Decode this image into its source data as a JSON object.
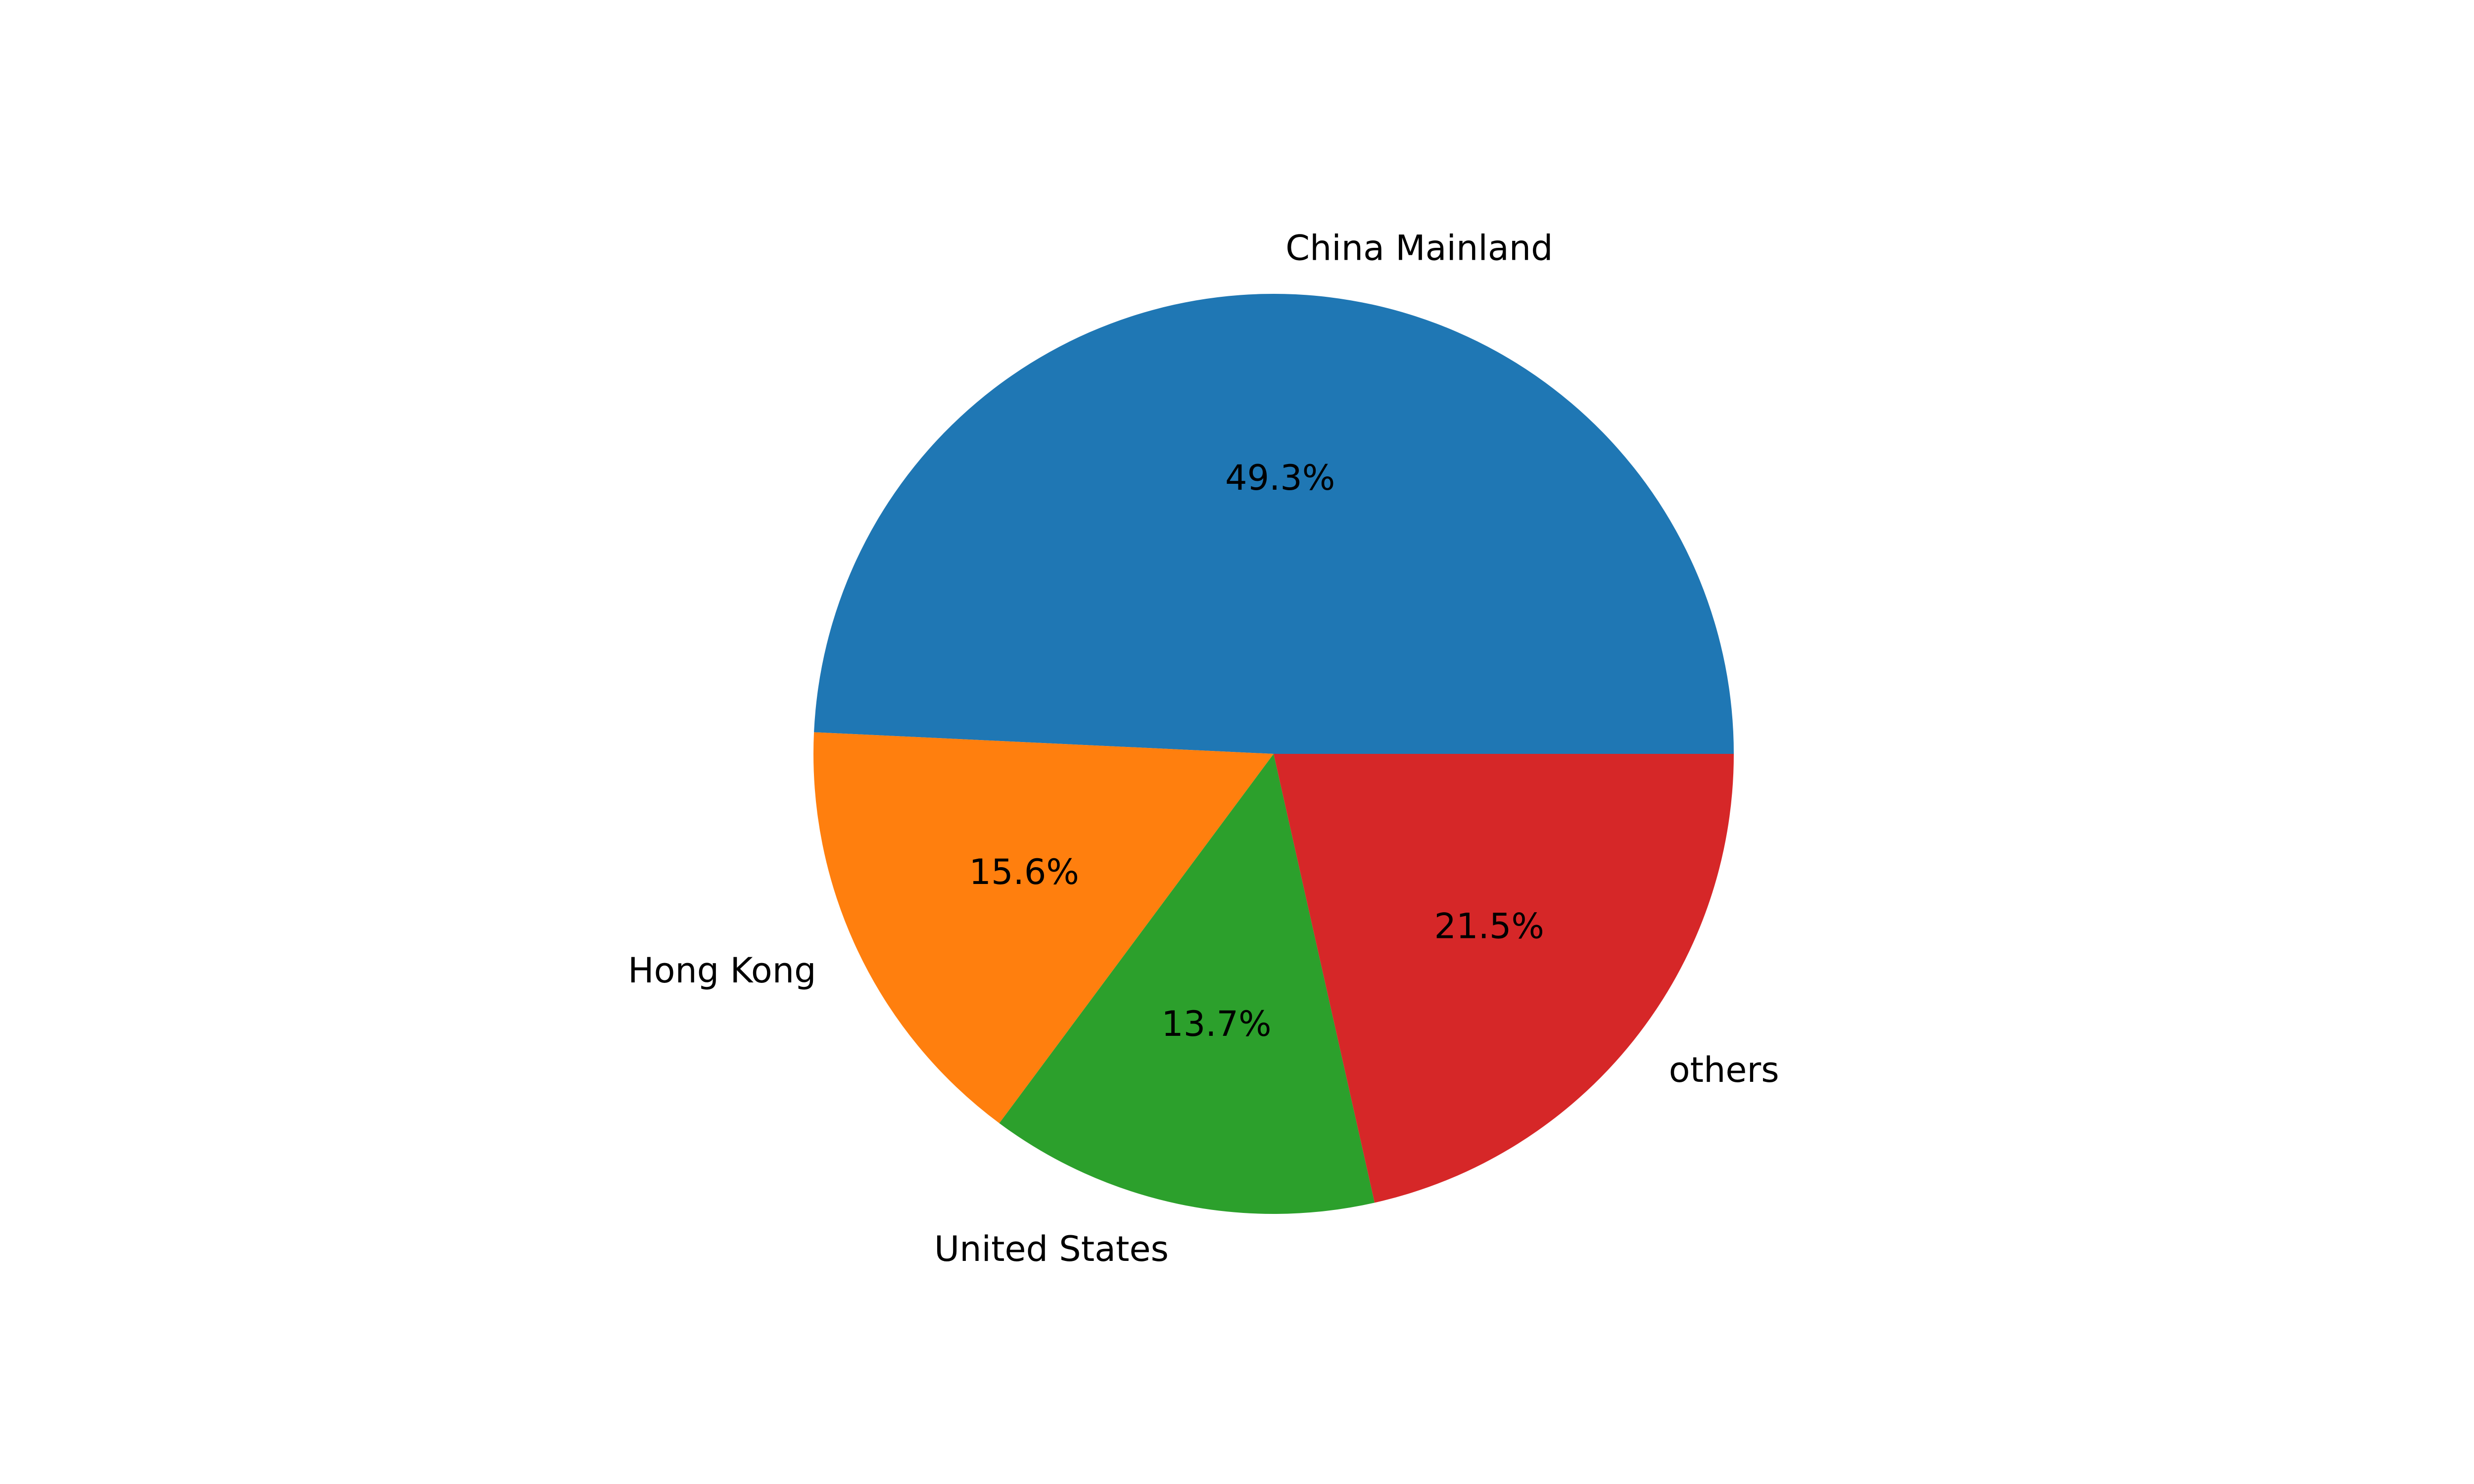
{
  "chart_data": {
    "type": "pie",
    "title": "",
    "categories": [
      "China Mainland",
      "Hong Kong",
      "United States",
      "others"
    ],
    "values": [
      49.3,
      15.6,
      13.7,
      21.5
    ],
    "value_labels": [
      "49.3%",
      "15.6%",
      "13.7%",
      "21.5%"
    ],
    "colors": [
      "#1f77b4",
      "#ff7f0e",
      "#2ca02c",
      "#d62728"
    ],
    "start_angle_deg": 0,
    "direction": "counterclockwise",
    "legend": "none"
  }
}
